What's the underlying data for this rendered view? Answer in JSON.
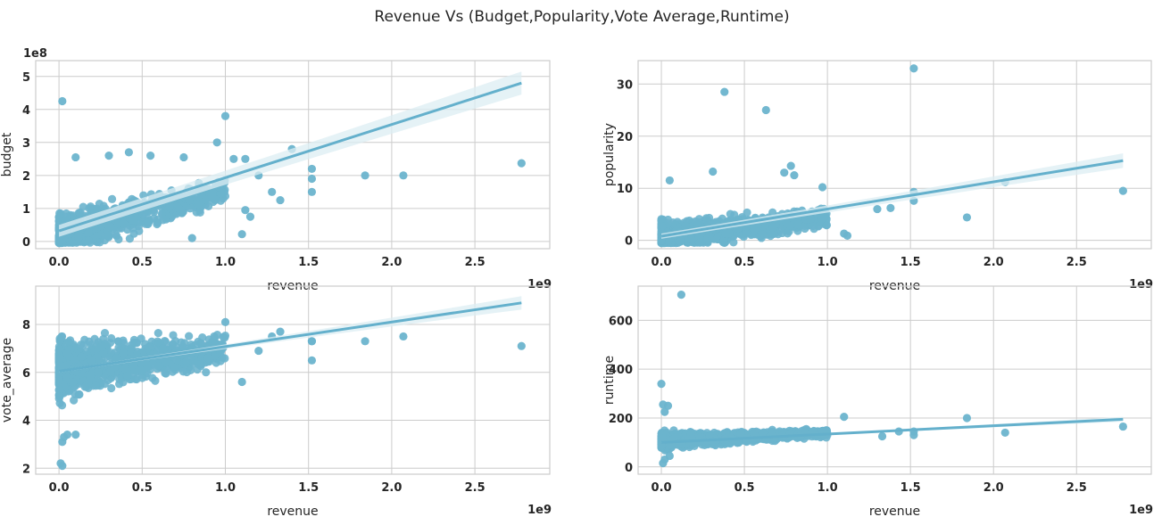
{
  "title": "Revenue Vs (Budget,Popularity,Vote Average,Runtime)",
  "colors": {
    "point": "#6cb4cd",
    "line": "#64b0cc",
    "band": "#dcedf3",
    "grid": "#cccccc",
    "text": "#262626"
  },
  "chart_data": [
    {
      "type": "scatter",
      "xlabel": "revenue",
      "ylabel": "budget",
      "x_multiplier": "1e9",
      "y_multiplier": "1e8",
      "xlim": [
        -0.14,
        2.95
      ],
      "ylim": [
        -0.22,
        5.48
      ],
      "xticks": [
        0.0,
        0.5,
        1.0,
        1.5,
        2.0,
        2.5
      ],
      "xtick_labels": [
        "0.0",
        "0.5",
        "1.0",
        "1.5",
        "2.0",
        "2.5"
      ],
      "yticks": [
        0,
        1,
        2,
        3,
        4,
        5
      ],
      "ytick_labels": [
        "0",
        "1",
        "2",
        "3",
        "4",
        "5"
      ],
      "regression": {
        "x": [
          0.0,
          2.78
        ],
        "y": [
          0.32,
          4.8
        ],
        "ci": [
          0.18,
          0.35
        ]
      },
      "outliers": [
        [
          0.02,
          4.25
        ],
        [
          1.0,
          3.8
        ],
        [
          0.95,
          3.0
        ],
        [
          1.4,
          2.8
        ],
        [
          2.78,
          2.37
        ],
        [
          1.84,
          2.0
        ],
        [
          2.07,
          2.0
        ],
        [
          1.52,
          2.2
        ],
        [
          1.52,
          1.5
        ],
        [
          1.52,
          1.9
        ],
        [
          1.1,
          0.22
        ],
        [
          1.33,
          1.25
        ],
        [
          1.28,
          1.5
        ],
        [
          0.1,
          2.55
        ],
        [
          0.42,
          2.7
        ],
        [
          0.3,
          2.6
        ],
        [
          0.55,
          2.6
        ],
        [
          0.75,
          2.55
        ],
        [
          1.05,
          2.5
        ],
        [
          1.12,
          2.5
        ],
        [
          1.2,
          2.0
        ],
        [
          0.8,
          0.1
        ],
        [
          1.12,
          0.95
        ],
        [
          1.15,
          0.75
        ]
      ],
      "cluster": {
        "n": 900,
        "x_max": 1.0,
        "y_base": 0.15,
        "y_slope": 1.4,
        "y_spread": 0.9,
        "seed": 11
      }
    },
    {
      "type": "scatter",
      "xlabel": "revenue",
      "ylabel": "popularity",
      "x_multiplier": "1e9",
      "xlim": [
        -0.14,
        2.95
      ],
      "ylim": [
        -1.6,
        34.5
      ],
      "xticks": [
        0.0,
        0.5,
        1.0,
        1.5,
        2.0,
        2.5
      ],
      "xtick_labels": [
        "0.0",
        "0.5",
        "1.0",
        "1.5",
        "2.0",
        "2.5"
      ],
      "yticks": [
        0,
        10,
        20,
        30
      ],
      "ytick_labels": [
        "0",
        "10",
        "20",
        "30"
      ],
      "regression": {
        "x": [
          0.0,
          2.78
        ],
        "y": [
          0.8,
          15.3
        ],
        "ci": [
          0.5,
          1.4
        ]
      },
      "outliers": [
        [
          1.52,
          33.0
        ],
        [
          0.38,
          28.5
        ],
        [
          0.63,
          25.0
        ],
        [
          1.52,
          9.3
        ],
        [
          2.07,
          11.2
        ],
        [
          2.78,
          9.5
        ],
        [
          1.84,
          4.4
        ],
        [
          1.1,
          1.3
        ],
        [
          1.12,
          0.9
        ],
        [
          0.31,
          13.2
        ],
        [
          0.05,
          11.5
        ],
        [
          0.74,
          13.0
        ],
        [
          0.78,
          14.3
        ],
        [
          0.8,
          12.5
        ],
        [
          0.97,
          10.2
        ],
        [
          1.52,
          7.6
        ],
        [
          1.38,
          6.2
        ],
        [
          1.3,
          6.0
        ]
      ],
      "cluster": {
        "n": 900,
        "x_max": 1.0,
        "y_base": 0.3,
        "y_slope": 4.0,
        "y_spread": 4.5,
        "seed": 23
      }
    },
    {
      "type": "scatter",
      "xlabel": "revenue",
      "ylabel": "vote_average",
      "x_multiplier": "1e9",
      "xlim": [
        -0.14,
        2.95
      ],
      "ylim": [
        1.75,
        9.6
      ],
      "xticks": [
        0.0,
        0.5,
        1.0,
        1.5,
        2.0,
        2.5
      ],
      "xtick_labels": [
        "0.0",
        "0.5",
        "1.0",
        "1.5",
        "2.0",
        "2.5"
      ],
      "yticks": [
        2,
        4,
        6,
        8
      ],
      "ytick_labels": [
        "2",
        "4",
        "6",
        "8"
      ],
      "regression": {
        "x": [
          0.0,
          2.78
        ],
        "y": [
          6.05,
          8.9
        ],
        "ci": [
          0.05,
          0.28
        ]
      },
      "outliers": [
        [
          0.01,
          2.2
        ],
        [
          0.02,
          2.1
        ],
        [
          2.78,
          7.1
        ],
        [
          2.07,
          7.5
        ],
        [
          1.84,
          7.3
        ],
        [
          1.52,
          7.3
        ],
        [
          1.52,
          6.5
        ],
        [
          1.52,
          7.3
        ],
        [
          1.1,
          5.6
        ],
        [
          1.28,
          7.5
        ],
        [
          1.33,
          7.7
        ],
        [
          1.2,
          6.9
        ],
        [
          1.0,
          8.1
        ],
        [
          0.05,
          3.4
        ],
        [
          0.1,
          3.4
        ],
        [
          0.02,
          3.1
        ],
        [
          0.03,
          3.3
        ]
      ],
      "cluster": {
        "n": 1000,
        "x_max": 1.0,
        "y_base": 6.1,
        "y_slope": 0.9,
        "y_spread": 1.6,
        "seed": 37
      }
    },
    {
      "type": "scatter",
      "xlabel": "revenue",
      "ylabel": "runtime",
      "x_multiplier": "1e9",
      "xlim": [
        -0.14,
        2.95
      ],
      "ylim": [
        -30,
        740
      ],
      "xticks": [
        0.0,
        0.5,
        1.0,
        1.5,
        2.0,
        2.5
      ],
      "xtick_labels": [
        "0.0",
        "0.5",
        "1.0",
        "1.5",
        "2.0",
        "2.5"
      ],
      "yticks": [
        0,
        200,
        400,
        600
      ],
      "ytick_labels": [
        "0",
        "200",
        "400",
        "600"
      ],
      "regression": {
        "x": [
          0.0,
          2.78
        ],
        "y": [
          100,
          195
        ],
        "ci": [
          2,
          10
        ]
      },
      "outliers": [
        [
          0.12,
          705
        ],
        [
          0.0,
          340
        ],
        [
          0.01,
          255
        ],
        [
          0.04,
          250
        ],
        [
          0.02,
          225
        ],
        [
          2.78,
          165
        ],
        [
          2.07,
          140
        ],
        [
          1.84,
          200
        ],
        [
          1.52,
          145
        ],
        [
          1.52,
          130
        ],
        [
          1.43,
          145
        ],
        [
          1.33,
          125
        ],
        [
          1.1,
          205
        ],
        [
          0.01,
          15
        ],
        [
          0.02,
          30
        ],
        [
          0.05,
          45
        ]
      ],
      "cluster": {
        "n": 1000,
        "x_max": 1.0,
        "y_base": 108,
        "y_slope": 30,
        "y_spread": 45,
        "seed": 53
      }
    }
  ]
}
